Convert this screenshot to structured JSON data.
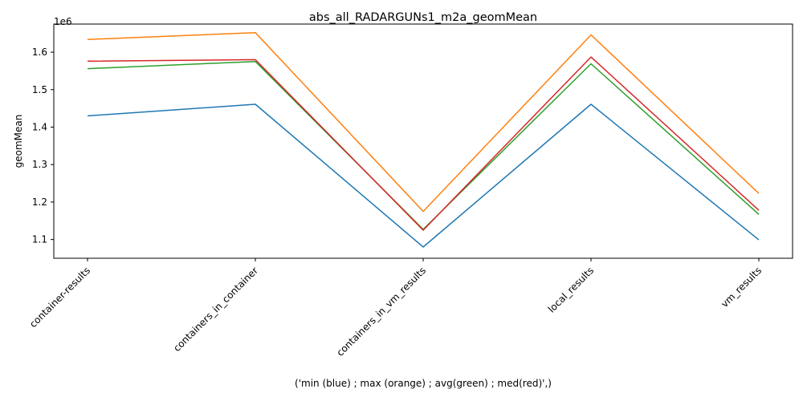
{
  "chart_data": {
    "type": "line",
    "title": "abs_all_RADARGUNs1_m2a_geomMean",
    "xlabel": "('min (blue) ; max (orange) ; avg(green) ; med(red)',)",
    "ylabel": "geomMean",
    "offset_label": "1e6",
    "categories": [
      "container-results",
      "containers_in_container",
      "containers_in_vm_results",
      "local_results",
      "vm_results"
    ],
    "ylim": [
      1.05,
      1.675
    ],
    "yticks": [
      1.1,
      1.2,
      1.3,
      1.4,
      1.5,
      1.6
    ],
    "ytick_labels": [
      "1.1",
      "1.2",
      "1.3",
      "1.4",
      "1.5",
      "1.6"
    ],
    "grid": false,
    "series": [
      {
        "values": [
          1.43,
          1.461,
          1.08,
          1.461,
          1.099
        ],
        "color": "#1f77b4"
      },
      {
        "values": [
          1.634,
          1.652,
          1.175,
          1.646,
          1.223
        ],
        "color": "#ff7f0e"
      },
      {
        "values": [
          1.556,
          1.575,
          1.127,
          1.569,
          1.167
        ],
        "color": "#2ca02c"
      },
      {
        "values": [
          1.576,
          1.58,
          1.125,
          1.587,
          1.178
        ],
        "color": "#d62728"
      }
    ]
  }
}
